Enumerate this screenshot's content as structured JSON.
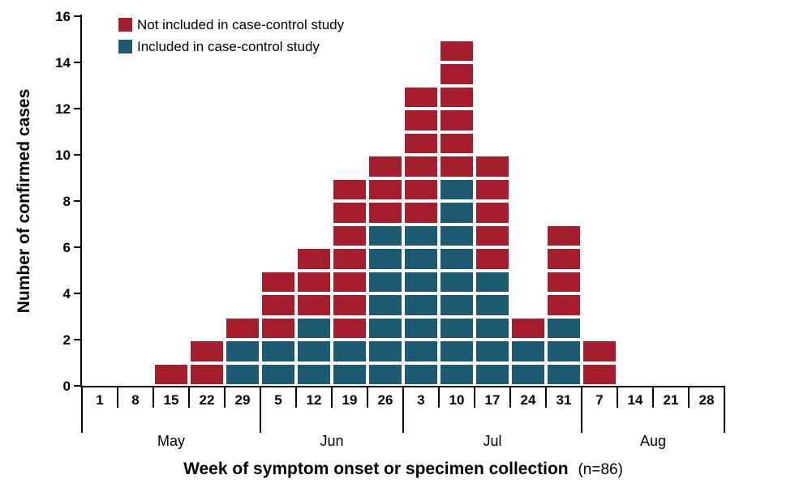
{
  "chart_data": {
    "type": "bar",
    "variant": "stacked-unit-case epi curve",
    "ylabel": "Number of confirmed cases",
    "xlabel": "Week of symptom onset or specimen collection",
    "xlabel_suffix": "(n=86)",
    "n_total": 86,
    "ylim": [
      0,
      16
    ],
    "yticks": [
      0,
      2,
      4,
      6,
      8,
      10,
      12,
      14,
      16
    ],
    "categories": [
      "1",
      "8",
      "15",
      "22",
      "29",
      "5",
      "12",
      "19",
      "26",
      "3",
      "10",
      "17",
      "24",
      "31",
      "7",
      "14",
      "21",
      "28"
    ],
    "month_groups": [
      {
        "label": "May",
        "span": 5
      },
      {
        "label": "Jun",
        "span": 4
      },
      {
        "label": "Jul",
        "span": 5
      },
      {
        "label": "Aug",
        "span": 4
      }
    ],
    "series": [
      {
        "name": "Included in case-control study",
        "color": "#1b5a70",
        "values": [
          0,
          0,
          0,
          0,
          2,
          2,
          3,
          2,
          7,
          7,
          9,
          5,
          2,
          3,
          0,
          0,
          0,
          0
        ]
      },
      {
        "name": "Not included in case-control study",
        "color": "#a41e2e",
        "values": [
          0,
          0,
          1,
          2,
          1,
          3,
          3,
          7,
          3,
          6,
          6,
          5,
          1,
          4,
          2,
          0,
          0,
          0
        ]
      }
    ],
    "totals": [
      0,
      0,
      1,
      2,
      3,
      5,
      6,
      9,
      10,
      13,
      15,
      10,
      3,
      7,
      2,
      0,
      0,
      0
    ],
    "legend": [
      {
        "label": "Not included in case-control study",
        "color": "#a41e2e"
      },
      {
        "label": "Included in case-control study",
        "color": "#1b5a70"
      }
    ],
    "legend_position": "top-left-inside",
    "grid": false
  }
}
